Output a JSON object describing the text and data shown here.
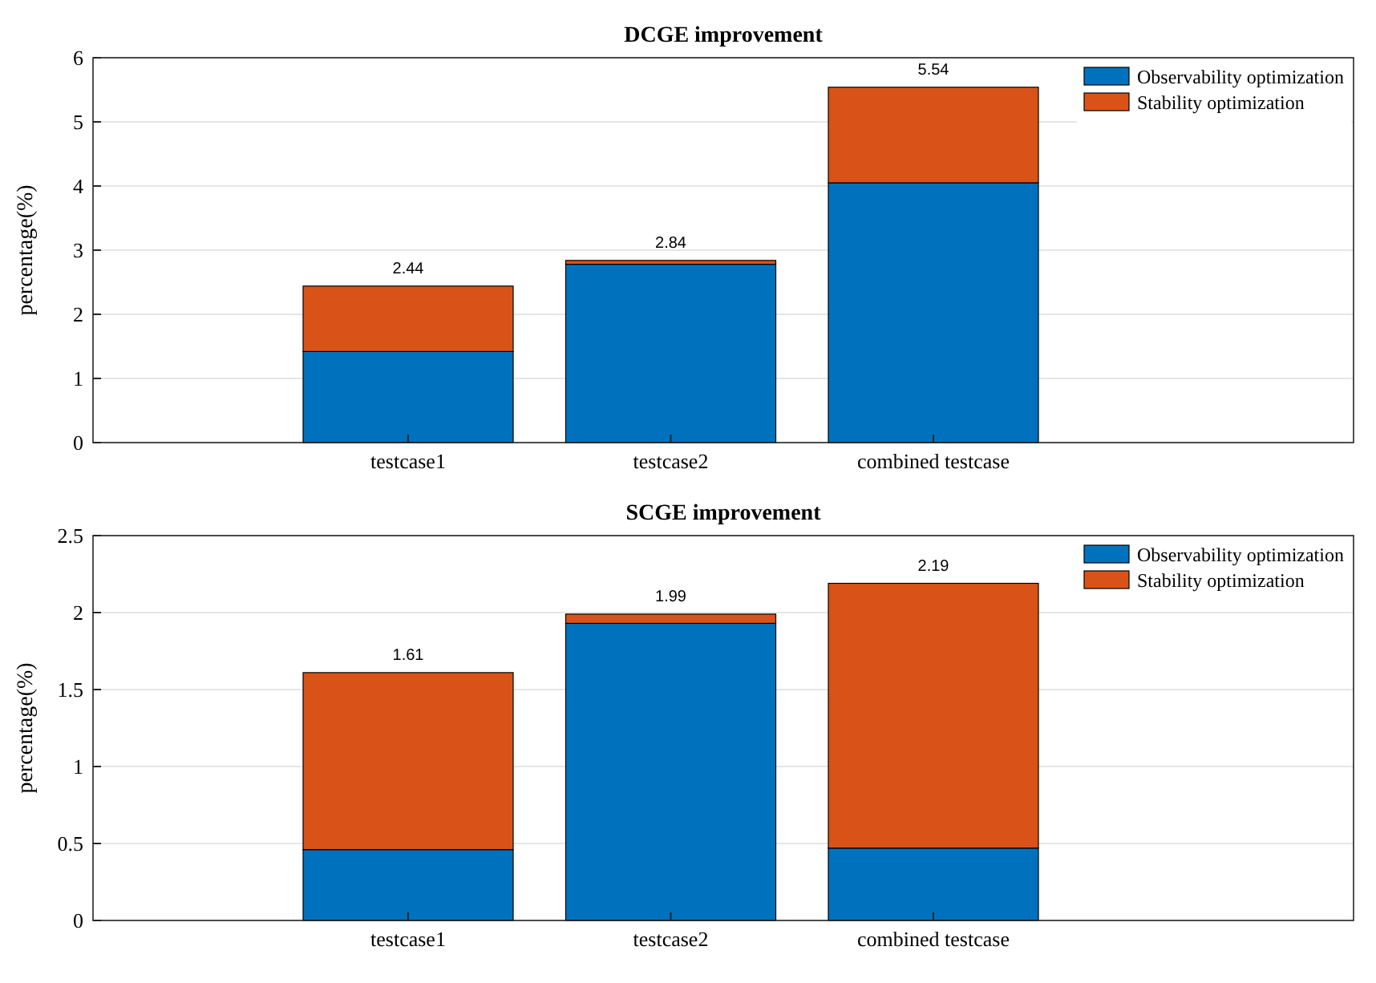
{
  "chart_data": [
    {
      "type": "bar",
      "title": "DCGE improvement",
      "ylabel": "percentage(%)",
      "categories": [
        "testcase1",
        "testcase2",
        "combined testcase"
      ],
      "stacked": true,
      "series": [
        {
          "name": "Observability optimization",
          "color": "#0072bd",
          "values": [
            1.42,
            2.78,
            4.05
          ]
        },
        {
          "name": "Stability optimization",
          "color": "#d95319",
          "values": [
            1.02,
            0.06,
            1.49
          ]
        }
      ],
      "totals": [
        "2.44",
        "2.84",
        "5.54"
      ],
      "ylim": [
        0,
        6
      ],
      "yticks": [
        0,
        1,
        2,
        3,
        4,
        5,
        6
      ],
      "grid": "y",
      "legend": "top right"
    },
    {
      "type": "bar",
      "title": "SCGE improvement",
      "ylabel": "percentage(%)",
      "categories": [
        "testcase1",
        "testcase2",
        "combined testcase"
      ],
      "stacked": true,
      "series": [
        {
          "name": "Observability optimization",
          "color": "#0072bd",
          "values": [
            0.46,
            1.93,
            0.47
          ]
        },
        {
          "name": "Stability optimization",
          "color": "#d95319",
          "values": [
            1.15,
            0.06,
            1.72
          ]
        }
      ],
      "totals": [
        "1.61",
        "1.99",
        "2.19"
      ],
      "ylim": [
        0,
        2.5
      ],
      "yticks": [
        0,
        0.5,
        1,
        1.5,
        2,
        2.5
      ],
      "grid": "y",
      "legend": "top right"
    }
  ]
}
